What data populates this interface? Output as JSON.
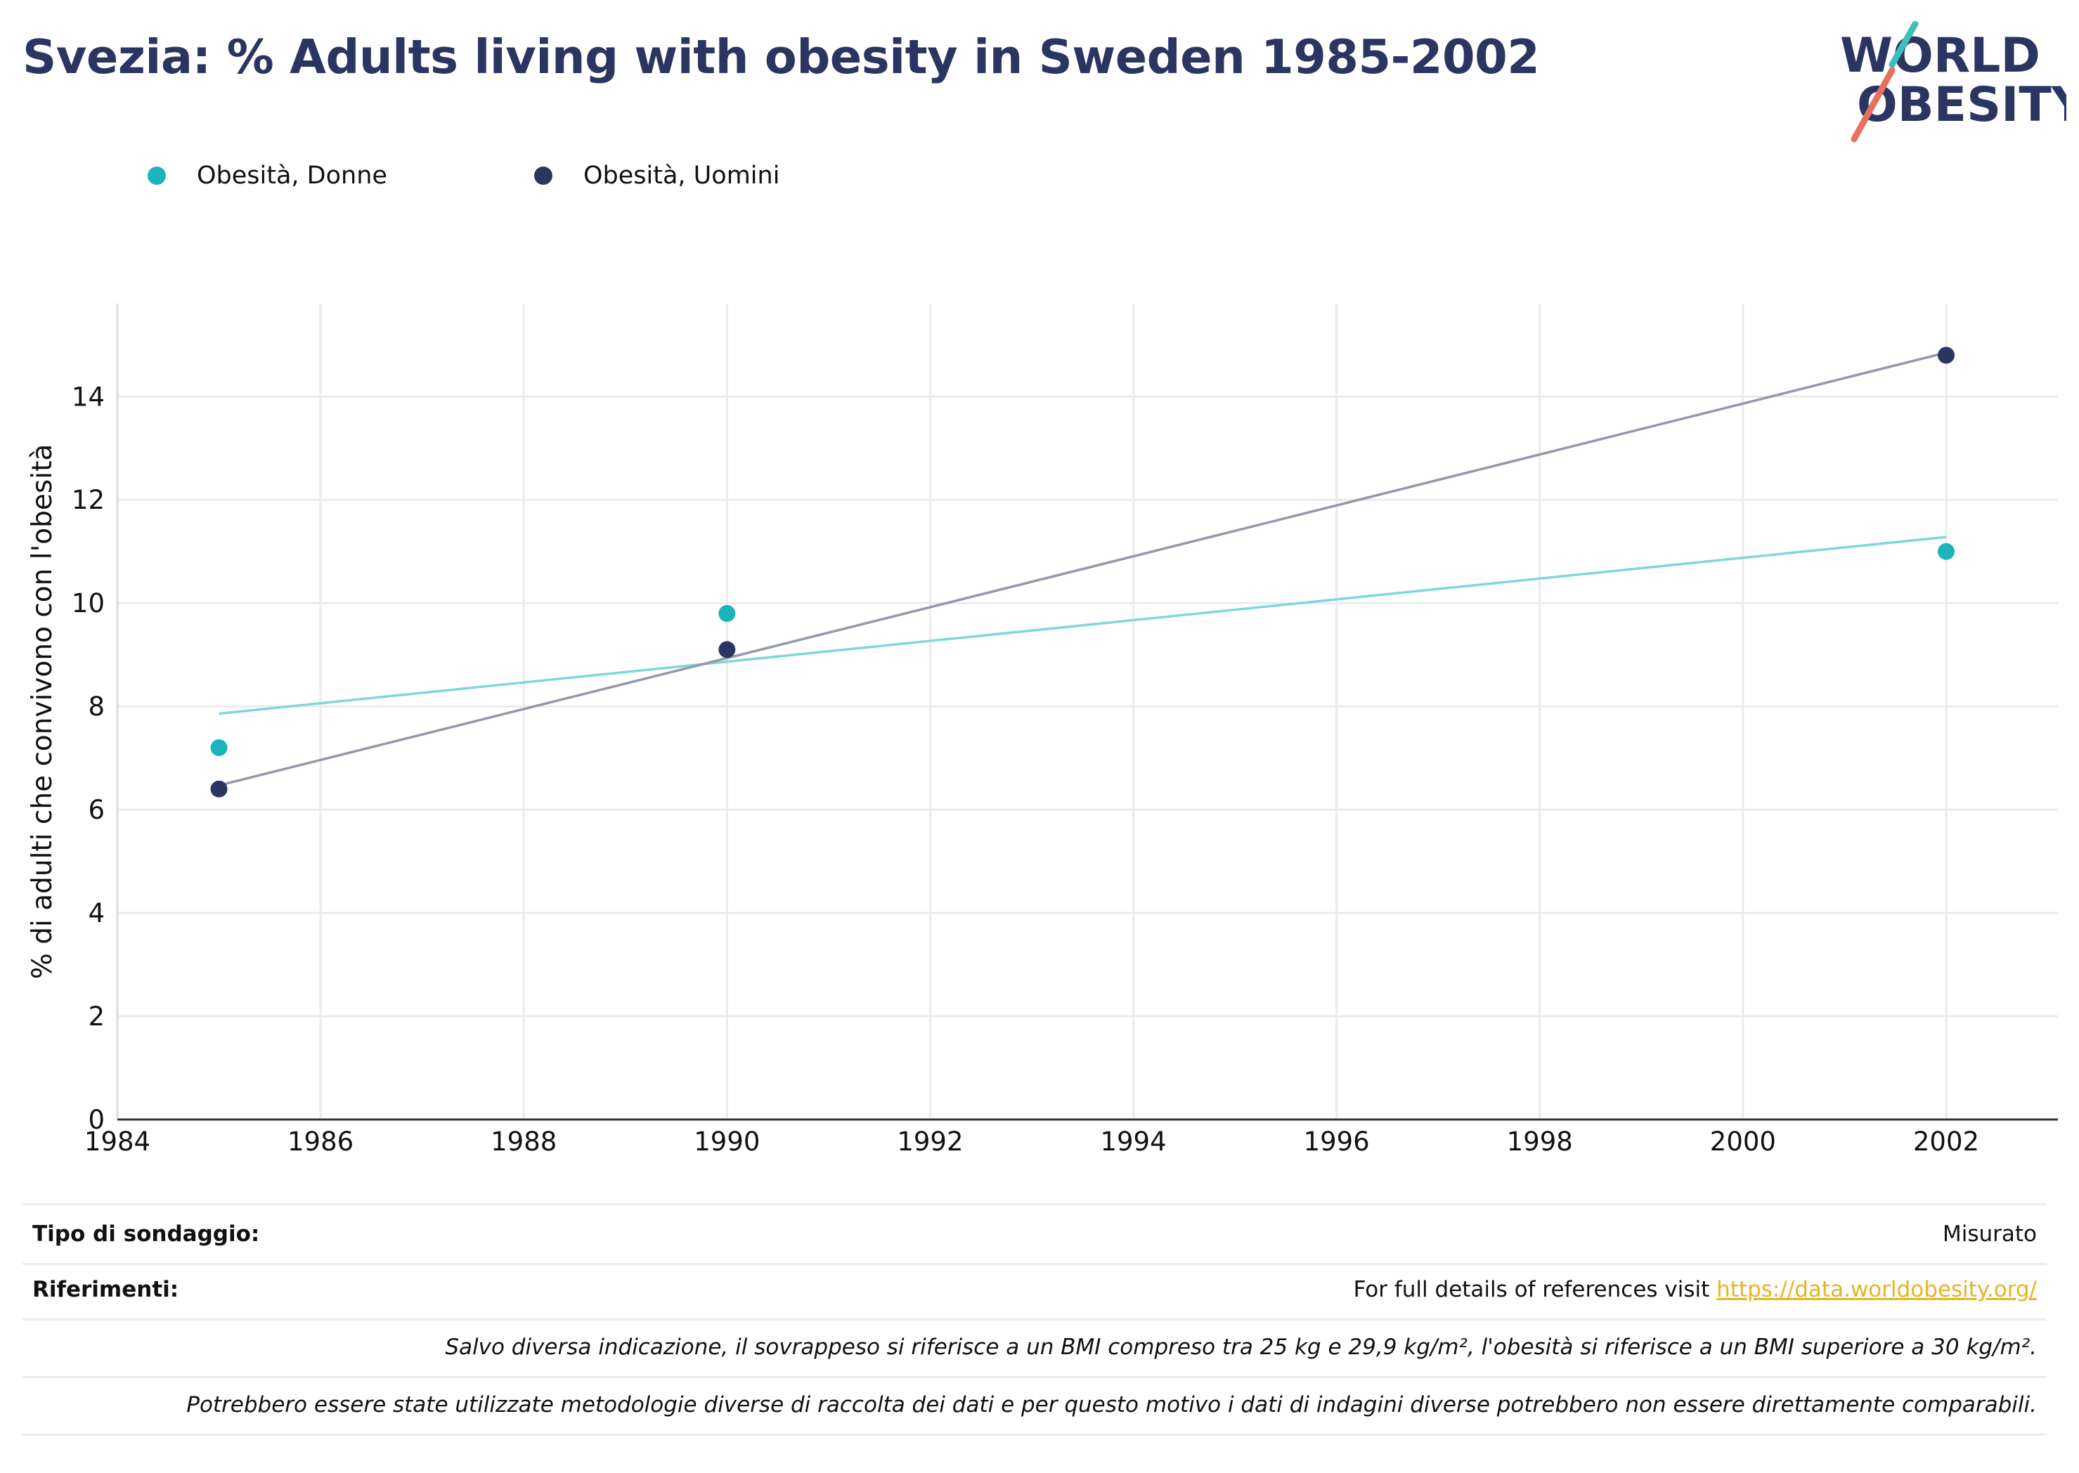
{
  "title": "Svezia: % Adults living with obesity in Sweden 1985-2002",
  "logo": {
    "line1": "WORLD",
    "line2": "OBESITY"
  },
  "colors": {
    "navy": "#2b3561",
    "teal": "#1db3bd",
    "teal_line": "#7fd6dc",
    "navy_line": "#9497ad",
    "link": "#e8b422"
  },
  "chart_data": {
    "type": "scatter",
    "ylabel": "% di adulti che convivono con l'obesità",
    "xlabel": "",
    "xlim": [
      1984,
      2003.1
    ],
    "ylim": [
      0,
      15.8
    ],
    "xticks": [
      1984,
      1986,
      1988,
      1990,
      1992,
      1994,
      1996,
      1998,
      2000,
      2002
    ],
    "yticks": [
      0,
      2,
      4,
      6,
      8,
      10,
      12,
      14
    ],
    "grid": true,
    "legend_position": "top-left",
    "series": [
      {
        "name": "Obesità, Donne",
        "color": "#1db3bd",
        "trend_color": "#7fd6dc",
        "points": [
          {
            "x": 1985,
            "y": 7.2
          },
          {
            "x": 1990,
            "y": 9.8
          },
          {
            "x": 2002,
            "y": 11.0
          }
        ],
        "trendline": [
          {
            "x": 1985,
            "y": 7.86
          },
          {
            "x": 2002,
            "y": 11.28
          }
        ]
      },
      {
        "name": "Obesità, Uomini",
        "color": "#2b3561",
        "trend_color": "#9497ad",
        "points": [
          {
            "x": 1985,
            "y": 6.4
          },
          {
            "x": 1990,
            "y": 9.1
          },
          {
            "x": 2002,
            "y": 14.8
          }
        ],
        "trendline": [
          {
            "x": 1985,
            "y": 6.47
          },
          {
            "x": 2002,
            "y": 14.85
          }
        ]
      }
    ]
  },
  "info": {
    "survey_label": "Tipo di sondaggio:",
    "survey_value": "Misurato",
    "references_label": "Riferimenti:",
    "references_text": "For full details of references visit ",
    "references_link": "https://data.worldobesity.org/",
    "note_bmi": "Salvo diversa indicazione, il sovrappeso si riferisce a un BMI compreso tra 25 kg e 29,9 kg/m², l'obesità si riferisce a un BMI superiore a 30 kg/m².",
    "note_methods": "Potrebbero essere state utilizzate metodologie diverse di raccolta dei dati e per questo motivo i dati di indagini diverse potrebbero non essere direttamente comparabili."
  }
}
